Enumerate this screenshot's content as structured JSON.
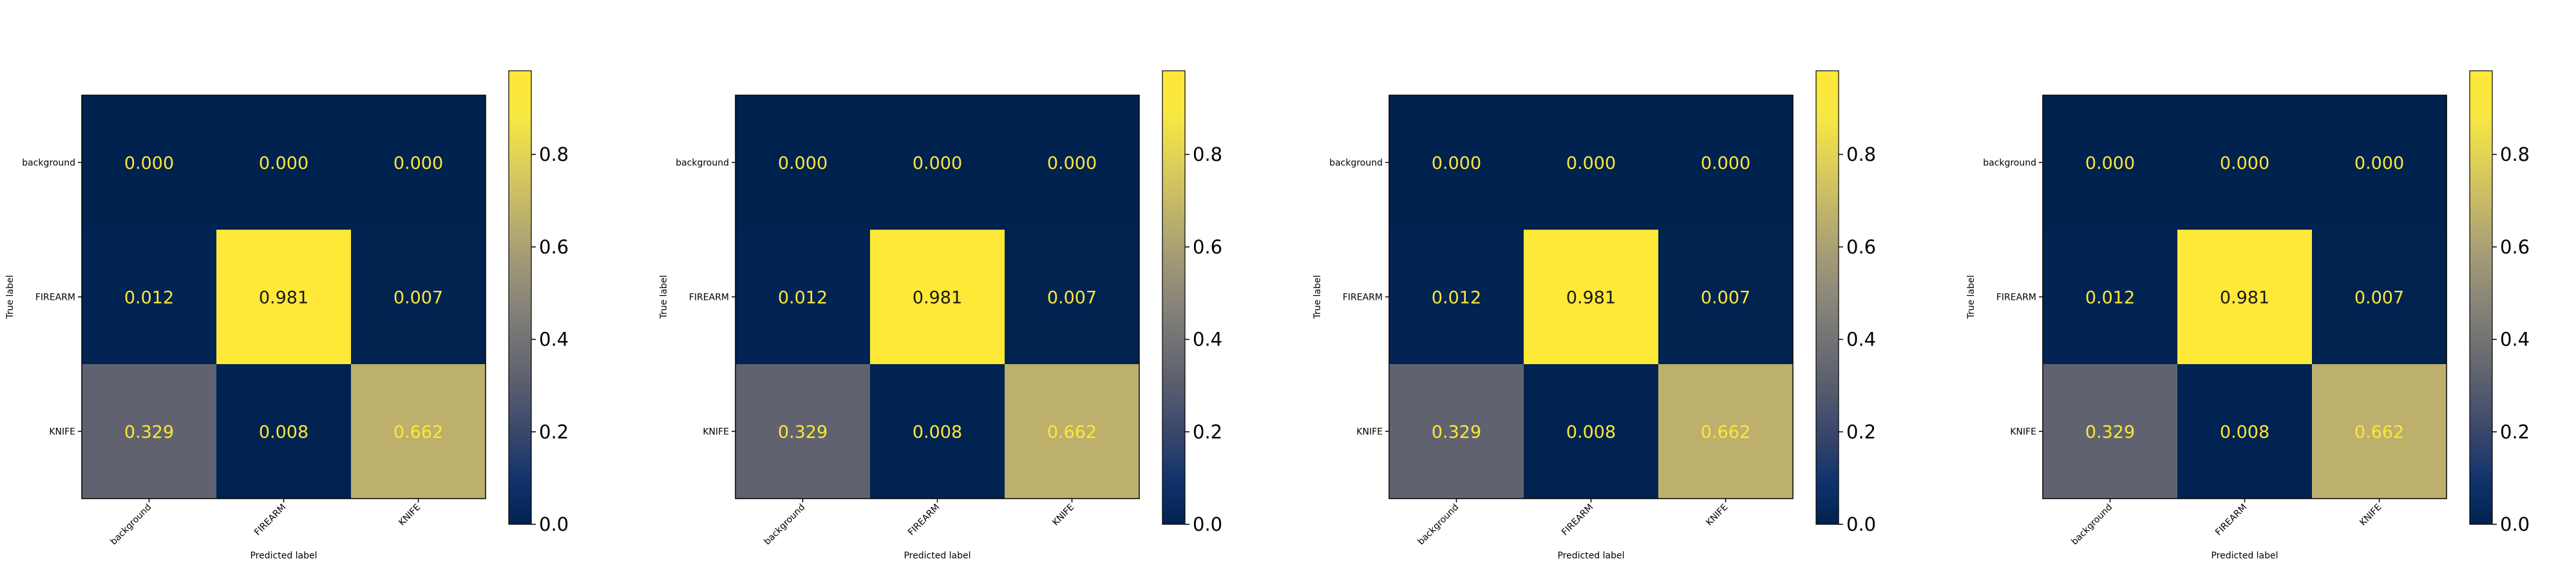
{
  "chart_data": [
    {
      "type": "heatmap",
      "xlabel": "Predicted label",
      "ylabel": "True label",
      "x_categories": [
        "background",
        "FIREARM",
        "KNIFE"
      ],
      "y_categories": [
        "background",
        "FIREARM",
        "KNIFE"
      ],
      "values": [
        [
          0.0,
          0.0,
          0.0
        ],
        [
          0.012,
          0.981,
          0.007
        ],
        [
          0.329,
          0.008,
          0.662
        ]
      ],
      "value_labels": [
        [
          "0.000",
          "0.000",
          "0.000"
        ],
        [
          "0.012",
          "0.981",
          "0.007"
        ],
        [
          "0.329",
          "0.008",
          "0.662"
        ]
      ],
      "colorbar": {
        "range": [
          0.0,
          0.981
        ],
        "ticks": [
          "0.0",
          "0.2",
          "0.4",
          "0.6",
          "0.8"
        ],
        "colormap": "cividis"
      }
    },
    {
      "type": "heatmap",
      "xlabel": "Predicted label",
      "ylabel": "True label",
      "x_categories": [
        "background",
        "FIREARM",
        "KNIFE"
      ],
      "y_categories": [
        "background",
        "FIREARM",
        "KNIFE"
      ],
      "values": [
        [
          0.0,
          0.0,
          0.0
        ],
        [
          0.012,
          0.981,
          0.007
        ],
        [
          0.329,
          0.008,
          0.662
        ]
      ],
      "value_labels": [
        [
          "0.000",
          "0.000",
          "0.000"
        ],
        [
          "0.012",
          "0.981",
          "0.007"
        ],
        [
          "0.329",
          "0.008",
          "0.662"
        ]
      ],
      "colorbar": {
        "range": [
          0.0,
          0.981
        ],
        "ticks": [
          "0.0",
          "0.2",
          "0.4",
          "0.6",
          "0.8"
        ],
        "colormap": "cividis"
      }
    },
    {
      "type": "heatmap",
      "xlabel": "Predicted label",
      "ylabel": "True label",
      "x_categories": [
        "background",
        "FIREARM",
        "KNIFE"
      ],
      "y_categories": [
        "background",
        "FIREARM",
        "KNIFE"
      ],
      "values": [
        [
          0.0,
          0.0,
          0.0
        ],
        [
          0.012,
          0.981,
          0.007
        ],
        [
          0.329,
          0.008,
          0.662
        ]
      ],
      "value_labels": [
        [
          "0.000",
          "0.000",
          "0.000"
        ],
        [
          "0.012",
          "0.981",
          "0.007"
        ],
        [
          "0.329",
          "0.008",
          "0.662"
        ]
      ],
      "colorbar": {
        "range": [
          0.0,
          0.981
        ],
        "ticks": [
          "0.0",
          "0.2",
          "0.4",
          "0.6",
          "0.8"
        ],
        "colormap": "cividis"
      }
    },
    {
      "type": "heatmap",
      "xlabel": "Predicted label",
      "ylabel": "True label",
      "x_categories": [
        "background",
        "FIREARM",
        "KNIFE"
      ],
      "y_categories": [
        "background",
        "FIREARM",
        "KNIFE"
      ],
      "values": [
        [
          0.0,
          0.0,
          0.0
        ],
        [
          0.012,
          0.981,
          0.007
        ],
        [
          0.329,
          0.008,
          0.662
        ]
      ],
      "value_labels": [
        [
          "0.000",
          "0.000",
          "0.000"
        ],
        [
          "0.012",
          "0.981",
          "0.007"
        ],
        [
          "0.329",
          "0.008",
          "0.662"
        ]
      ],
      "colorbar": {
        "range": [
          0.0,
          0.981
        ],
        "ticks": [
          "0.0",
          "0.2",
          "0.4",
          "0.6",
          "0.8"
        ],
        "colormap": "cividis"
      }
    }
  ]
}
